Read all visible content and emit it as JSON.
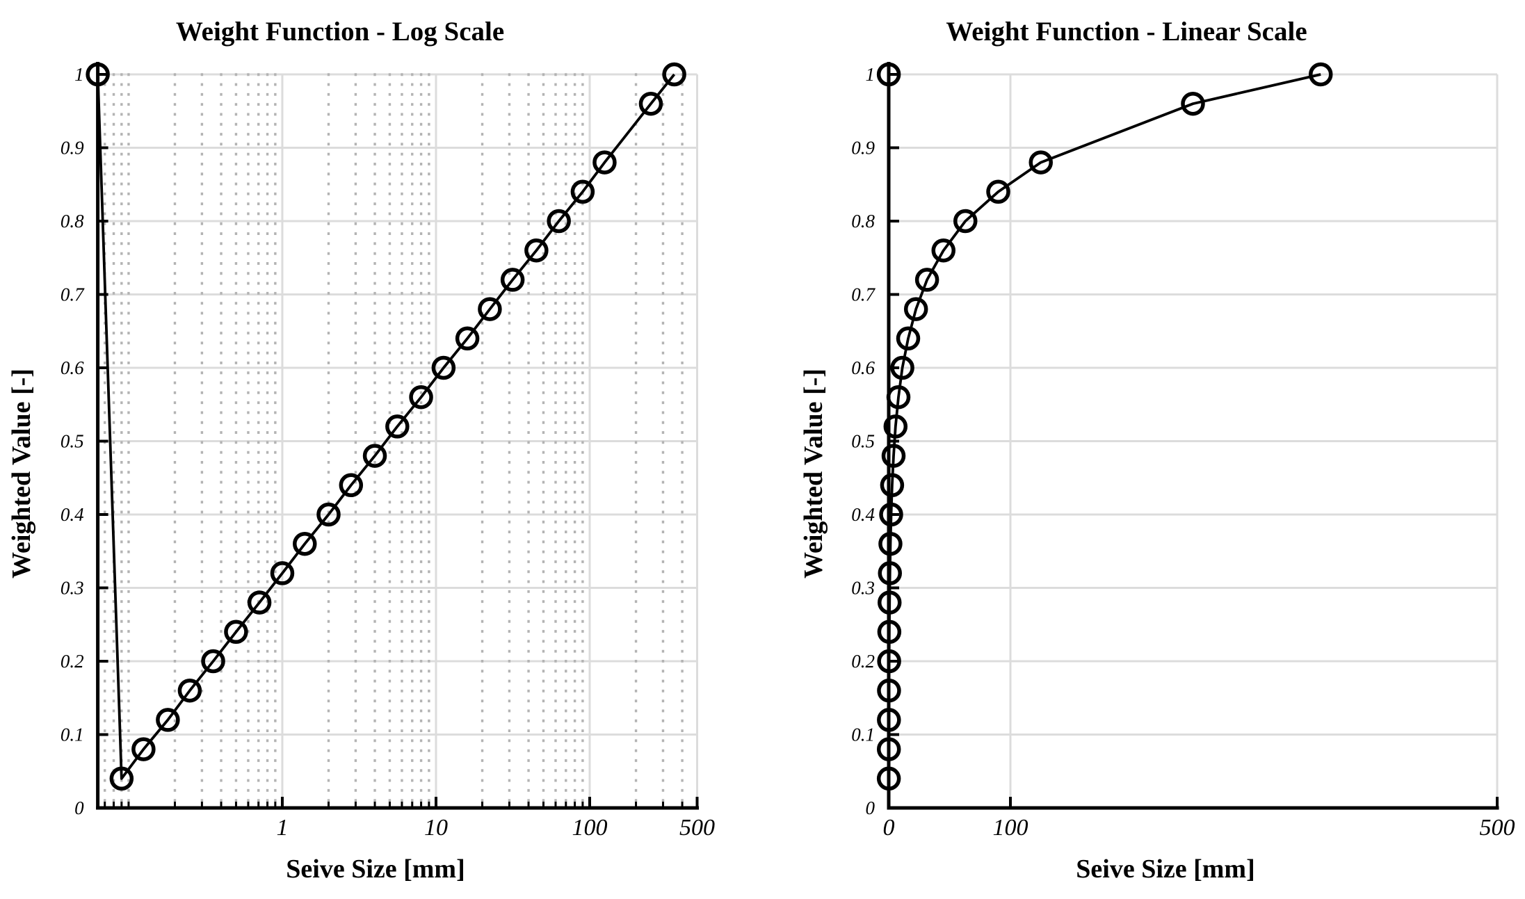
{
  "figure": {
    "background": "#ffffff",
    "text_color": "#000000"
  },
  "chart_data": [
    {
      "type": "line",
      "title": "Weight Function - Log Scale",
      "xlabel": "Seive Size [mm]",
      "ylabel": "Weighted Value [-]",
      "xscale": "log",
      "xlim": [
        0.063,
        500
      ],
      "ylim": [
        0,
        1
      ],
      "xticks": [
        1,
        10,
        100,
        500
      ],
      "xtick_labels": [
        "1",
        "10",
        "100",
        "500"
      ],
      "yticks": [
        0,
        0.1,
        0.2,
        0.3,
        0.4,
        0.5,
        0.6,
        0.7,
        0.8,
        0.9,
        1
      ],
      "ytick_labels": [
        "0",
        "0.1",
        "0.2",
        "0.3",
        "0.4",
        "0.5",
        "0.6",
        "0.7",
        "0.8",
        "0.9",
        "1"
      ],
      "x_minor_gridlines": [
        0.07,
        0.08,
        0.09,
        0.1,
        0.2,
        0.3,
        0.4,
        0.5,
        0.6,
        0.7,
        0.8,
        0.9,
        2,
        3,
        4,
        5,
        6,
        7,
        8,
        9,
        20,
        30,
        40,
        50,
        60,
        70,
        80,
        90,
        200,
        300,
        400
      ],
      "grid": "major solid horizontal+vertical, dotted x-minor",
      "legend_position": "none",
      "marker": "open-circle",
      "series": [
        {
          "name": "weight-function",
          "x": [
            0.063,
            0.09,
            0.125,
            0.18,
            0.25,
            0.355,
            0.5,
            0.71,
            1,
            1.4,
            2,
            2.8,
            4,
            5.6,
            8,
            11.2,
            16,
            22.4,
            31.5,
            45,
            63,
            90,
            125,
            250,
            355
          ],
          "y": [
            1.0,
            0.04,
            0.08,
            0.12,
            0.16,
            0.2,
            0.24,
            0.28,
            0.32,
            0.36,
            0.4,
            0.44,
            0.48,
            0.52,
            0.56,
            0.6,
            0.64,
            0.68,
            0.72,
            0.76,
            0.8,
            0.84,
            0.88,
            0.96,
            1.0
          ]
        }
      ],
      "colors": {
        "line": "#000000",
        "marker": "#000000",
        "axis": "#000000",
        "grid": "#dcdcdc",
        "minor_grid": "#b3b3b3"
      }
    },
    {
      "type": "line",
      "title": "Weight Function - Linear Scale",
      "xlabel": "Seive Size [mm]",
      "ylabel": "Weighted Value [-]",
      "xscale": "linear",
      "xlim": [
        0,
        500
      ],
      "ylim": [
        0,
        1
      ],
      "xticks": [
        0,
        100,
        500
      ],
      "xtick_labels": [
        "0",
        "100",
        "500"
      ],
      "yticks": [
        0,
        0.1,
        0.2,
        0.3,
        0.4,
        0.5,
        0.6,
        0.7,
        0.8,
        0.9,
        1
      ],
      "ytick_labels": [
        "0",
        "0.1",
        "0.2",
        "0.3",
        "0.4",
        "0.5",
        "0.6",
        "0.7",
        "0.8",
        "0.9",
        "1"
      ],
      "x_minor_gridlines": [],
      "grid": "major solid horizontal+vertical",
      "legend_position": "none",
      "marker": "open-circle",
      "series": [
        {
          "name": "weight-function",
          "x": [
            0.063,
            0.09,
            0.125,
            0.18,
            0.25,
            0.355,
            0.5,
            0.71,
            1,
            1.4,
            2,
            2.8,
            4,
            5.6,
            8,
            11.2,
            16,
            22.4,
            31.5,
            45,
            63,
            90,
            125,
            250,
            355
          ],
          "y": [
            1.0,
            0.04,
            0.08,
            0.12,
            0.16,
            0.2,
            0.24,
            0.28,
            0.32,
            0.36,
            0.4,
            0.44,
            0.48,
            0.52,
            0.56,
            0.6,
            0.64,
            0.68,
            0.72,
            0.76,
            0.8,
            0.84,
            0.88,
            0.96,
            1.0
          ]
        }
      ],
      "colors": {
        "line": "#000000",
        "marker": "#000000",
        "axis": "#000000",
        "grid": "#dcdcdc",
        "minor_grid": "#b3b3b3"
      }
    }
  ]
}
